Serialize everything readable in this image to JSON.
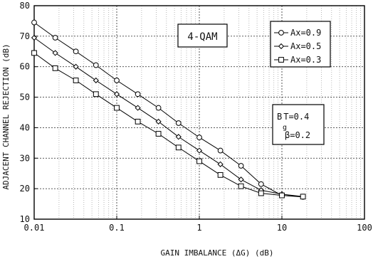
{
  "chart_data": {
    "type": "line",
    "title": "",
    "xlabel": "GAIN IMBALANCE (ΔG) (dB)",
    "ylabel": "ADJACENT CHANNEL REJECTION (dB)",
    "x_scale": "log",
    "xlim": [
      0.01,
      100
    ],
    "ylim": [
      10,
      80
    ],
    "grid": true,
    "x_ticks": [
      "0.01",
      "0.1",
      "1",
      "10",
      "100"
    ],
    "y_ticks": [
      "10",
      "20",
      "30",
      "40",
      "50",
      "60",
      "70",
      "80"
    ],
    "legend_position": "top-right",
    "annotation": "4-QAM",
    "params": {
      "line1_prefix": "B",
      "line1_sub": "g",
      "line1_rest": "T=0.4",
      "line2": "β=0.2"
    },
    "series": [
      {
        "name": "Ax=0.9",
        "marker": "circle",
        "x": [
          0.01,
          0.018,
          0.032,
          0.056,
          0.1,
          0.18,
          0.32,
          0.56,
          1.0,
          1.8,
          3.2,
          5.6,
          10,
          18
        ],
        "y": [
          74.5,
          69.5,
          65,
          60.5,
          55.5,
          51,
          46.5,
          41.5,
          36.8,
          32.5,
          27.5,
          21.5,
          17.8,
          17.3
        ]
      },
      {
        "name": "Ax=0.5",
        "marker": "diamond",
        "x": [
          0.01,
          0.018,
          0.032,
          0.056,
          0.1,
          0.18,
          0.32,
          0.56,
          1.0,
          1.8,
          3.2,
          5.6,
          10,
          18
        ],
        "y": [
          69.5,
          64.5,
          60,
          55.5,
          51,
          46.5,
          42,
          37,
          32.5,
          28,
          23,
          19.5,
          18.2,
          17.4
        ]
      },
      {
        "name": "Ax=0.3",
        "marker": "square",
        "x": [
          0.01,
          0.018,
          0.032,
          0.056,
          0.1,
          0.18,
          0.32,
          0.56,
          1.0,
          1.8,
          3.2,
          5.6,
          10,
          18
        ],
        "y": [
          64.5,
          59.5,
          55.5,
          51,
          46.5,
          42,
          38,
          33.5,
          29,
          24.5,
          20.8,
          18.5,
          17.8,
          17.4
        ]
      }
    ]
  }
}
